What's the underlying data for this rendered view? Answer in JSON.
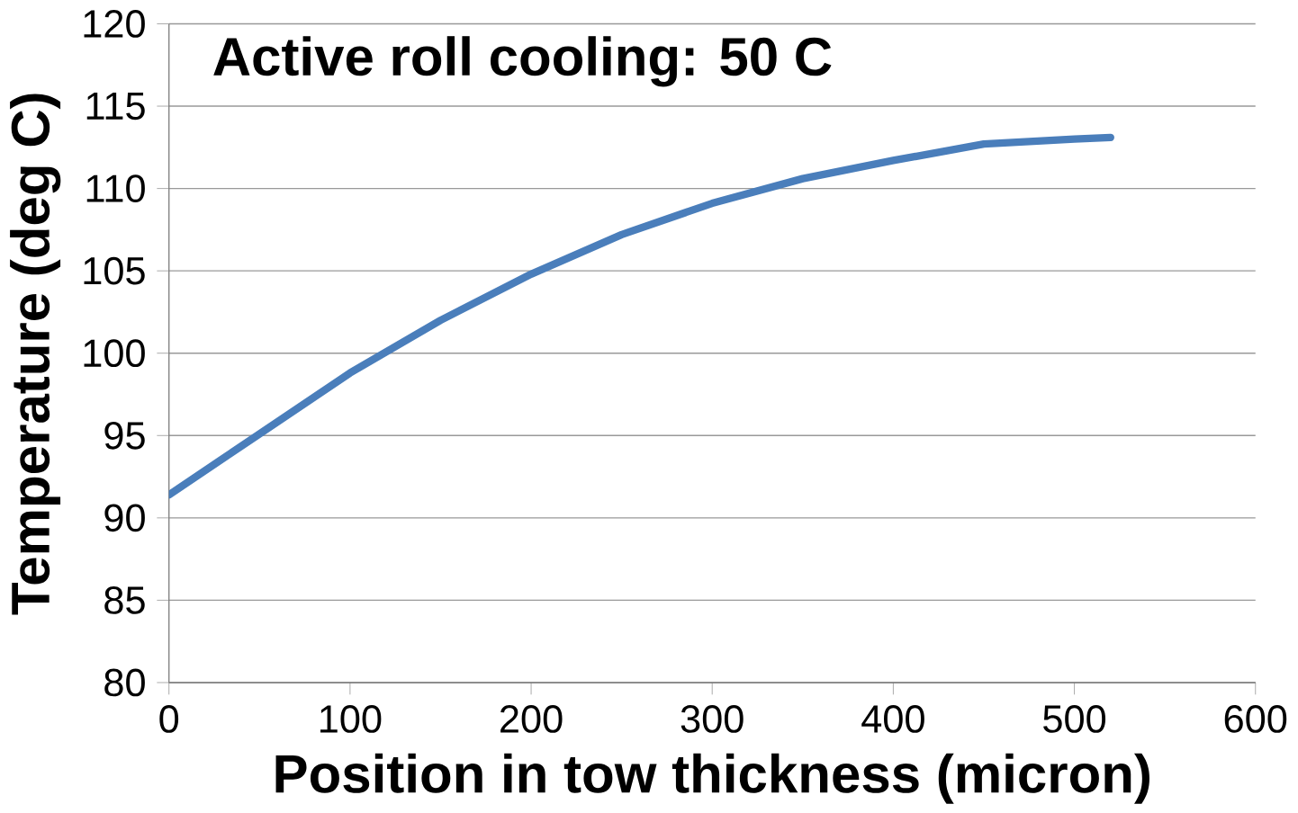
{
  "chart_data": {
    "type": "line",
    "title": "Active roll cooling:  50 C",
    "xlabel": "Position in tow thickness (micron)",
    "ylabel": "Temperature (deg C)",
    "x": [
      0,
      50,
      100,
      150,
      200,
      250,
      300,
      350,
      400,
      450,
      500,
      520
    ],
    "series": [
      {
        "color": "#4a7ebb",
        "values": [
          91.4,
          95.1,
          98.8,
          102,
          104.8,
          107.2,
          109.1,
          110.6,
          111.7,
          112.7,
          113.0,
          113.1
        ]
      }
    ],
    "xlim": [
      0,
      600
    ],
    "ylim": [
      80,
      120
    ],
    "xticks": [
      0,
      100,
      200,
      300,
      400,
      500,
      600
    ],
    "yticks": [
      80,
      85,
      90,
      95,
      100,
      105,
      110,
      115,
      120
    ],
    "grid": "y",
    "marker": "none",
    "line_style": "solid"
  }
}
